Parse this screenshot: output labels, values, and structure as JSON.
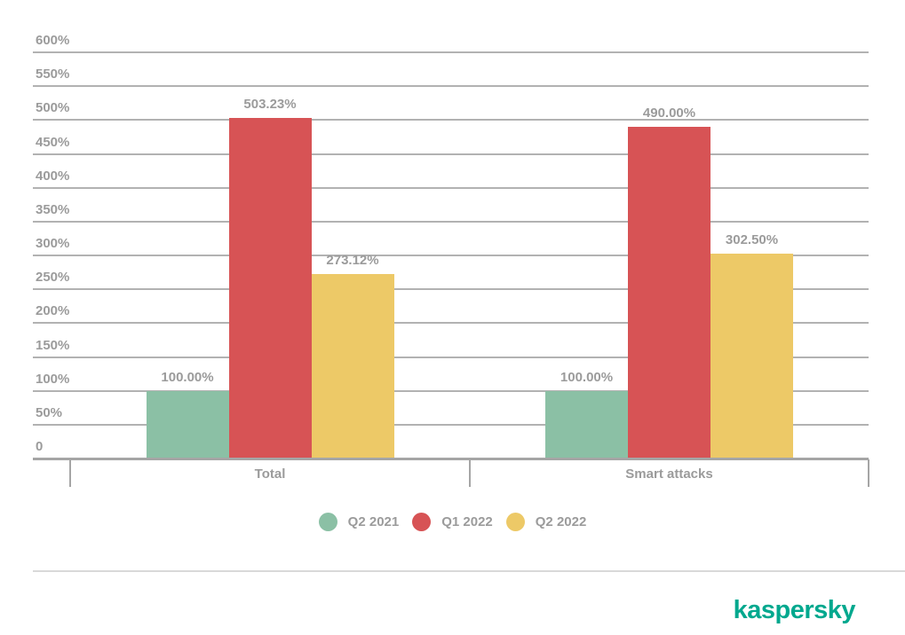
{
  "chart_data": {
    "type": "bar",
    "title": "",
    "xlabel": "",
    "ylabel": "",
    "grid": true,
    "legend_position": "bottom",
    "categories": [
      "Total",
      "Smart attacks"
    ],
    "series": [
      {
        "name": "Q2 2021",
        "color": "#8BC0A5",
        "values": [
          100.0,
          100.0
        ],
        "labels": [
          "100.00%",
          "100.00%"
        ]
      },
      {
        "name": "Q1 2022",
        "color": "#D75355",
        "values": [
          503.23,
          490.0
        ],
        "labels": [
          "503.23%",
          "490.00%"
        ]
      },
      {
        "name": "Q2 2022",
        "color": "#EDC967",
        "values": [
          273.12,
          302.5
        ],
        "labels": [
          "273.12%",
          "302.50%"
        ]
      }
    ],
    "y_axis": {
      "min": 0,
      "max": 600,
      "step": 50,
      "ticks": [
        {
          "value": 600,
          "label": "600%"
        },
        {
          "value": 550,
          "label": "550%"
        },
        {
          "value": 500,
          "label": "500%"
        },
        {
          "value": 450,
          "label": "450%"
        },
        {
          "value": 400,
          "label": "400%"
        },
        {
          "value": 350,
          "label": "350%"
        },
        {
          "value": 300,
          "label": "300%"
        },
        {
          "value": 250,
          "label": "250%"
        },
        {
          "value": 200,
          "label": "200%"
        },
        {
          "value": 150,
          "label": "150%"
        },
        {
          "value": 100,
          "label": "100%"
        },
        {
          "value": 50,
          "label": "50%"
        },
        {
          "value": 0,
          "label": "0"
        }
      ]
    }
  },
  "branding": {
    "logo_text": "kaspersky",
    "logo_color": "#00A88E"
  },
  "colors": {
    "label_gray": "#9B9B9B",
    "gridline": "#B2B2B2",
    "axis": "#A5A5A5",
    "separator": "#D9D9D9",
    "background": "#FFFFFF"
  }
}
